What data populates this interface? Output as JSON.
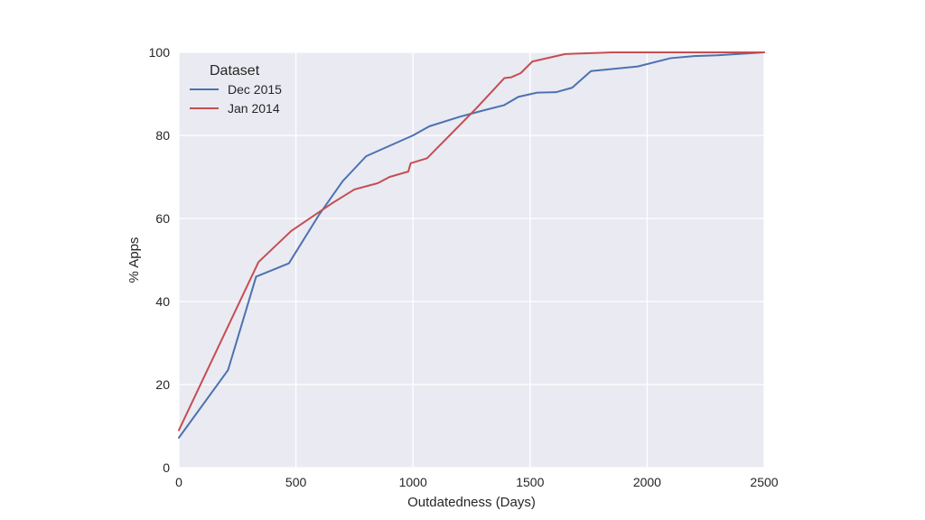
{
  "chart_data": {
    "type": "line",
    "title": "",
    "xlabel": "Outdatedness (Days)",
    "ylabel": "% Apps",
    "xlim": [
      0,
      2500
    ],
    "ylim": [
      0,
      100
    ],
    "xticks": [
      0,
      500,
      1000,
      1500,
      2000,
      2500
    ],
    "yticks": [
      0,
      20,
      40,
      60,
      80,
      100
    ],
    "grid": true,
    "background": "#eaeaf2",
    "legend": {
      "title": "Dataset",
      "placement": "top-left"
    },
    "series": [
      {
        "name": "Dec 2015",
        "color": "#4c72b0",
        "x": [
          0,
          210,
          330,
          470,
          600,
          700,
          800,
          900,
          1000,
          1070,
          1200,
          1300,
          1390,
          1450,
          1530,
          1610,
          1680,
          1700,
          1760,
          1960,
          2100,
          2200,
          2300,
          2500
        ],
        "y": [
          7.2,
          23.5,
          46.0,
          49.2,
          61.0,
          69.0,
          75.0,
          77.5,
          80.0,
          82.2,
          84.5,
          86.0,
          87.3,
          89.3,
          90.3,
          90.4,
          91.5,
          92.5,
          95.5,
          96.6,
          98.6,
          99.1,
          99.3,
          100
        ]
      },
      {
        "name": "Jan 2014",
        "color": "#c44e52",
        "x": [
          0,
          340,
          480,
          650,
          750,
          850,
          900,
          980,
          990,
          1060,
          1270,
          1390,
          1420,
          1460,
          1510,
          1650,
          1700,
          1800,
          1850,
          2500
        ],
        "y": [
          9.0,
          49.5,
          57.0,
          63.5,
          67.0,
          68.5,
          70.0,
          71.3,
          73.3,
          74.5,
          86.5,
          93.8,
          94.0,
          95.0,
          97.8,
          99.6,
          99.7,
          99.9,
          100,
          100
        ]
      }
    ]
  }
}
